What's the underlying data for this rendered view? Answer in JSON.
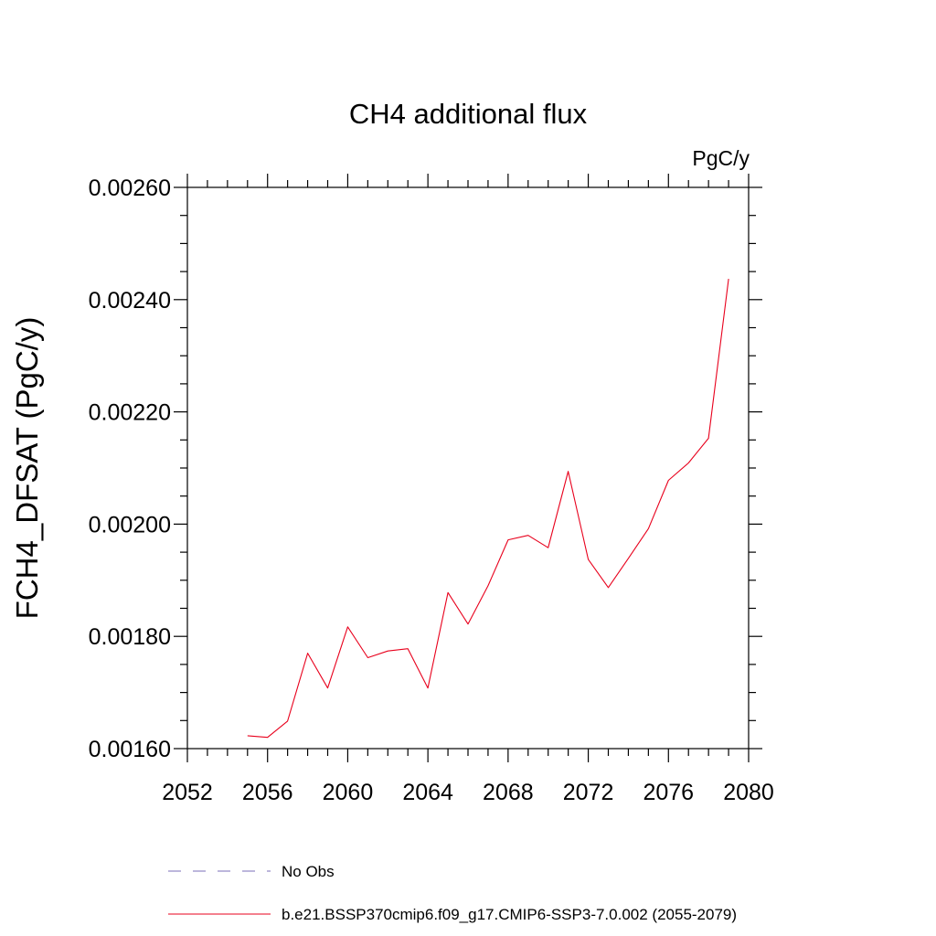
{
  "chart_data": {
    "type": "line",
    "title": "CH4 additional flux",
    "units_label": "PgC/y",
    "ylabel": "FCH4_DFSAT  (PgC/y)",
    "xlabel": "",
    "xlim": [
      2052,
      2080
    ],
    "ylim": [
      0.0016,
      0.0026
    ],
    "xticks": [
      2052,
      2056,
      2060,
      2064,
      2068,
      2072,
      2076,
      2080
    ],
    "xtick_labels": [
      "2052",
      "2056",
      "2060",
      "2064",
      "2068",
      "2072",
      "2076",
      "2080"
    ],
    "yticks": [
      0.0016,
      0.0018,
      0.002,
      0.0022,
      0.0024,
      0.0026
    ],
    "ytick_labels": [
      "0.00160",
      "0.00180",
      "0.00200",
      "0.00220",
      "0.00240",
      "0.00260"
    ],
    "grid": false,
    "legend_position": "bottom",
    "series": [
      {
        "name": "No Obs",
        "color": "#7b6fb8",
        "style": "dashed",
        "x": [],
        "y": []
      },
      {
        "name": "b.e21.BSSP370cmip6.f09_g17.CMIP6-SSP3-7.0.002 (2055-2079)",
        "color": "#e8001c",
        "style": "solid",
        "x": [
          2055,
          2056,
          2057,
          2058,
          2059,
          2060,
          2061,
          2062,
          2063,
          2064,
          2065,
          2066,
          2067,
          2068,
          2069,
          2070,
          2071,
          2072,
          2073,
          2074,
          2075,
          2076,
          2077,
          2078,
          2079
        ],
        "y": [
          0.001623,
          0.00162,
          0.001649,
          0.00177,
          0.001708,
          0.001817,
          0.001762,
          0.001774,
          0.001778,
          0.001708,
          0.001878,
          0.001822,
          0.00189,
          0.001972,
          0.00198,
          0.001958,
          0.002094,
          0.001937,
          0.001887,
          0.001939,
          0.001992,
          0.002078,
          0.002109,
          0.002153,
          0.002437
        ]
      }
    ]
  }
}
